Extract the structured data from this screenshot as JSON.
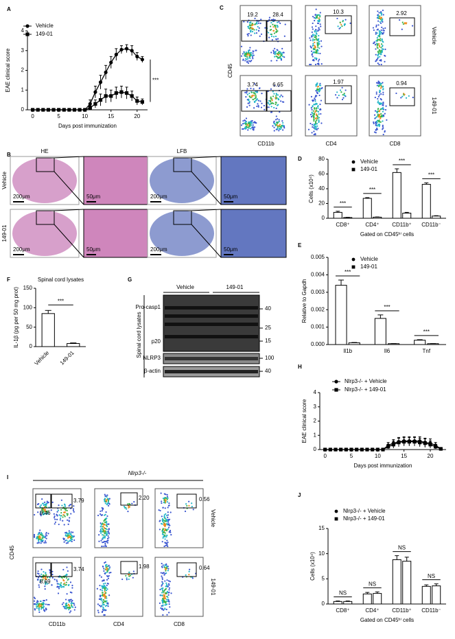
{
  "chart_data": [
    {
      "type": "line",
      "panel": "A",
      "ylabel": "EAE clinical score",
      "xlabel": "Days post immunization",
      "x": [
        0,
        1,
        2,
        3,
        4,
        5,
        6,
        7,
        8,
        9,
        10,
        11,
        12,
        13,
        14,
        15,
        16,
        17,
        18,
        19,
        20,
        21
      ],
      "series": [
        {
          "name": "Vehicle",
          "color": "#000000",
          "marker": "circle",
          "values": [
            0,
            0,
            0,
            0,
            0,
            0,
            0,
            0,
            0,
            0,
            0,
            0.3,
            0.9,
            1.4,
            1.9,
            2.4,
            2.8,
            3.05,
            3.1,
            3.0,
            2.7,
            2.55
          ],
          "errors": [
            0,
            0,
            0,
            0,
            0,
            0,
            0,
            0,
            0,
            0,
            0,
            0.2,
            0.3,
            0.35,
            0.35,
            0.3,
            0.3,
            0.2,
            0.2,
            0.25,
            0.2,
            0.15
          ]
        },
        {
          "name": "149-01",
          "color": "#000000",
          "marker": "square",
          "values": [
            0,
            0,
            0,
            0,
            0,
            0,
            0,
            0,
            0,
            0,
            0,
            0.1,
            0.3,
            0.5,
            0.7,
            0.7,
            0.85,
            0.9,
            0.85,
            0.7,
            0.45,
            0.4
          ],
          "errors": [
            0,
            0,
            0,
            0,
            0,
            0,
            0,
            0,
            0,
            0,
            0,
            0.1,
            0.2,
            0.3,
            0.35,
            0.3,
            0.3,
            0.3,
            0.3,
            0.25,
            0.2,
            0.15
          ]
        }
      ],
      "xlim": [
        -1,
        22
      ],
      "xticks": [
        0,
        5,
        10,
        15,
        20
      ],
      "ylim": [
        0,
        4
      ],
      "yticks": [
        0,
        1,
        2,
        3,
        4
      ],
      "annotation": "***"
    },
    {
      "type": "bar",
      "panel": "D",
      "ylabel": "Cells (x10⁴)",
      "xlabel": "Gated on CD45ʰⁱ cells",
      "categories": [
        "CD8⁺",
        "CD4⁺",
        "CD11b⁺",
        "CD11b⁻"
      ],
      "series": [
        {
          "name": "Vehicle",
          "color": "#000000",
          "marker": "circle",
          "values": [
            8,
            27,
            62,
            46
          ],
          "errors": [
            1.5,
            1,
            5,
            2
          ]
        },
        {
          "name": "149-01",
          "color": "#000000",
          "marker": "square",
          "values": [
            1,
            1.5,
            7,
            3
          ],
          "errors": [
            0.3,
            0.3,
            1,
            0.5
          ]
        }
      ],
      "ylim": [
        0,
        80
      ],
      "yticks": [
        0,
        20,
        40,
        60,
        80
      ],
      "significance": [
        "***",
        "***",
        "***",
        "***"
      ]
    },
    {
      "type": "bar",
      "panel": "E",
      "ylabel": "Relative to Gapdh",
      "categories": [
        "Il1b",
        "Il6",
        "Tnf"
      ],
      "series": [
        {
          "name": "Vehicle",
          "color": "#000000",
          "marker": "circle",
          "values": [
            0.0034,
            0.0015,
            0.00025
          ],
          "errors": [
            0.0003,
            0.0002,
            3e-05
          ]
        },
        {
          "name": "149-01",
          "color": "#000000",
          "marker": "square",
          "values": [
            0.0001,
            5e-05,
            5e-05
          ],
          "errors": [
            2e-05,
            1e-05,
            1e-05
          ]
        }
      ],
      "ylim": [
        0,
        0.005
      ],
      "yticks": [
        {
          "value": 0,
          "label": "0.000"
        },
        0.001,
        0.002,
        0.003,
        0.004,
        0.005
      ],
      "significance": [
        "***",
        "***",
        "***"
      ]
    },
    {
      "type": "bar",
      "panel": "F",
      "title": "Spinal cord lysates",
      "ylabel": "IL-1β (pg per 50 mg prot)",
      "categories": [
        "Vehicle",
        "149-01"
      ],
      "series": [
        {
          "color": "#000000",
          "marker": "circle",
          "values": [
            85,
            8
          ],
          "errors": [
            8,
            1.5
          ]
        }
      ],
      "ylim": [
        0,
        150
      ],
      "yticks": [
        0,
        50,
        100,
        150
      ],
      "significance": "***"
    },
    {
      "type": "line",
      "panel": "H",
      "ylabel": "EAE clinical score",
      "xlabel": "Days post immunization",
      "x": [
        0,
        1,
        2,
        3,
        4,
        5,
        6,
        7,
        8,
        9,
        10,
        11,
        12,
        13,
        14,
        15,
        16,
        17,
        18,
        19,
        20,
        21,
        22
      ],
      "series": [
        {
          "name": "Nlrp3-/- + Vehicle",
          "color": "#000000",
          "marker": "circle",
          "values": [
            0,
            0,
            0,
            0,
            0,
            0,
            0,
            0,
            0,
            0,
            0,
            0,
            0.3,
            0.45,
            0.55,
            0.6,
            0.6,
            0.6,
            0.6,
            0.5,
            0.45,
            0.3,
            0.05
          ],
          "errors": [
            0,
            0,
            0,
            0,
            0,
            0,
            0,
            0,
            0,
            0,
            0,
            0,
            0.2,
            0.25,
            0.3,
            0.3,
            0.3,
            0.3,
            0.3,
            0.3,
            0.3,
            0.2,
            0.05
          ]
        },
        {
          "name": "Nlrp3-/- + 149-01",
          "color": "#000000",
          "marker": "square",
          "values": [
            0,
            0,
            0,
            0,
            0,
            0,
            0,
            0,
            0,
            0,
            0,
            0,
            0.2,
            0.35,
            0.5,
            0.55,
            0.55,
            0.55,
            0.5,
            0.45,
            0.35,
            0.2,
            0.05
          ],
          "errors": [
            0,
            0,
            0,
            0,
            0,
            0,
            0,
            0,
            0,
            0,
            0,
            0,
            0.15,
            0.25,
            0.3,
            0.3,
            0.3,
            0.3,
            0.3,
            0.3,
            0.25,
            0.15,
            0.05
          ]
        }
      ],
      "xlim": [
        -1,
        23
      ],
      "xticks": [
        0,
        5,
        10,
        15,
        20
      ],
      "ylim": [
        0,
        4
      ],
      "yticks": [
        0,
        1,
        2,
        3,
        4
      ]
    },
    {
      "type": "bar",
      "panel": "J",
      "ylabel": "Cells (x10⁴)",
      "xlabel": "Gated on CD45ʰⁱ cells",
      "categories": [
        "CD8⁺",
        "CD4⁺",
        "CD11b⁺",
        "CD11b⁻"
      ],
      "series": [
        {
          "name": "Nlrp3-/- + Vehicle",
          "color": "#000000",
          "marker": "circle",
          "values": [
            0.5,
            2,
            8.8,
            3.5
          ],
          "errors": [
            0.1,
            0.3,
            0.8,
            0.3
          ]
        },
        {
          "name": "Nlrp3-/- + 149-01",
          "color": "#000000",
          "marker": "square",
          "values": [
            0.5,
            2.1,
            8.5,
            3.6
          ],
          "errors": [
            0.1,
            0.3,
            0.8,
            0.4
          ]
        }
      ],
      "ylim": [
        0,
        15
      ],
      "yticks": [
        0,
        5,
        10,
        15
      ],
      "significance": [
        "NS",
        "NS",
        "NS",
        "NS"
      ]
    }
  ],
  "histology": {
    "panel": "B",
    "columns": [
      "HE",
      "LFB"
    ],
    "rows": [
      "Vehicle",
      "149-01"
    ],
    "scale_bars": [
      "200μm",
      "50μm"
    ]
  },
  "flow_wt": {
    "panel": "C",
    "y_axis": "CD45",
    "x_axes": [
      "CD11b",
      "CD4",
      "CD8"
    ],
    "rows": [
      "Vehicle",
      "149-01"
    ],
    "gates": [
      [
        "19.2",
        "28.4",
        "10.3",
        "2.92"
      ],
      [
        "3.74",
        "6.65",
        "1.97",
        "0.94"
      ]
    ]
  },
  "western": {
    "panel": "G",
    "lanes": [
      "Vehicle",
      "149-01"
    ],
    "sample": "Spinal cord lysates",
    "bands": [
      "Pro-casp1",
      "p20",
      "NLRP3",
      "β-actin"
    ],
    "markers": [
      "40",
      "25",
      "15",
      "100",
      "40"
    ]
  },
  "flow_ko": {
    "panel": "I",
    "genotype": "Nlrp3-/-",
    "y_axis": "CD45",
    "x_axes": [
      "CD11b",
      "CD4",
      "CD8"
    ],
    "rows": [
      "Vehicle",
      "149-01"
    ],
    "gates": [
      [
        "9.46",
        "3.79",
        "2.20",
        "0.56"
      ],
      [
        "8.69",
        "3.74",
        "1.98",
        "0.64"
      ]
    ]
  }
}
